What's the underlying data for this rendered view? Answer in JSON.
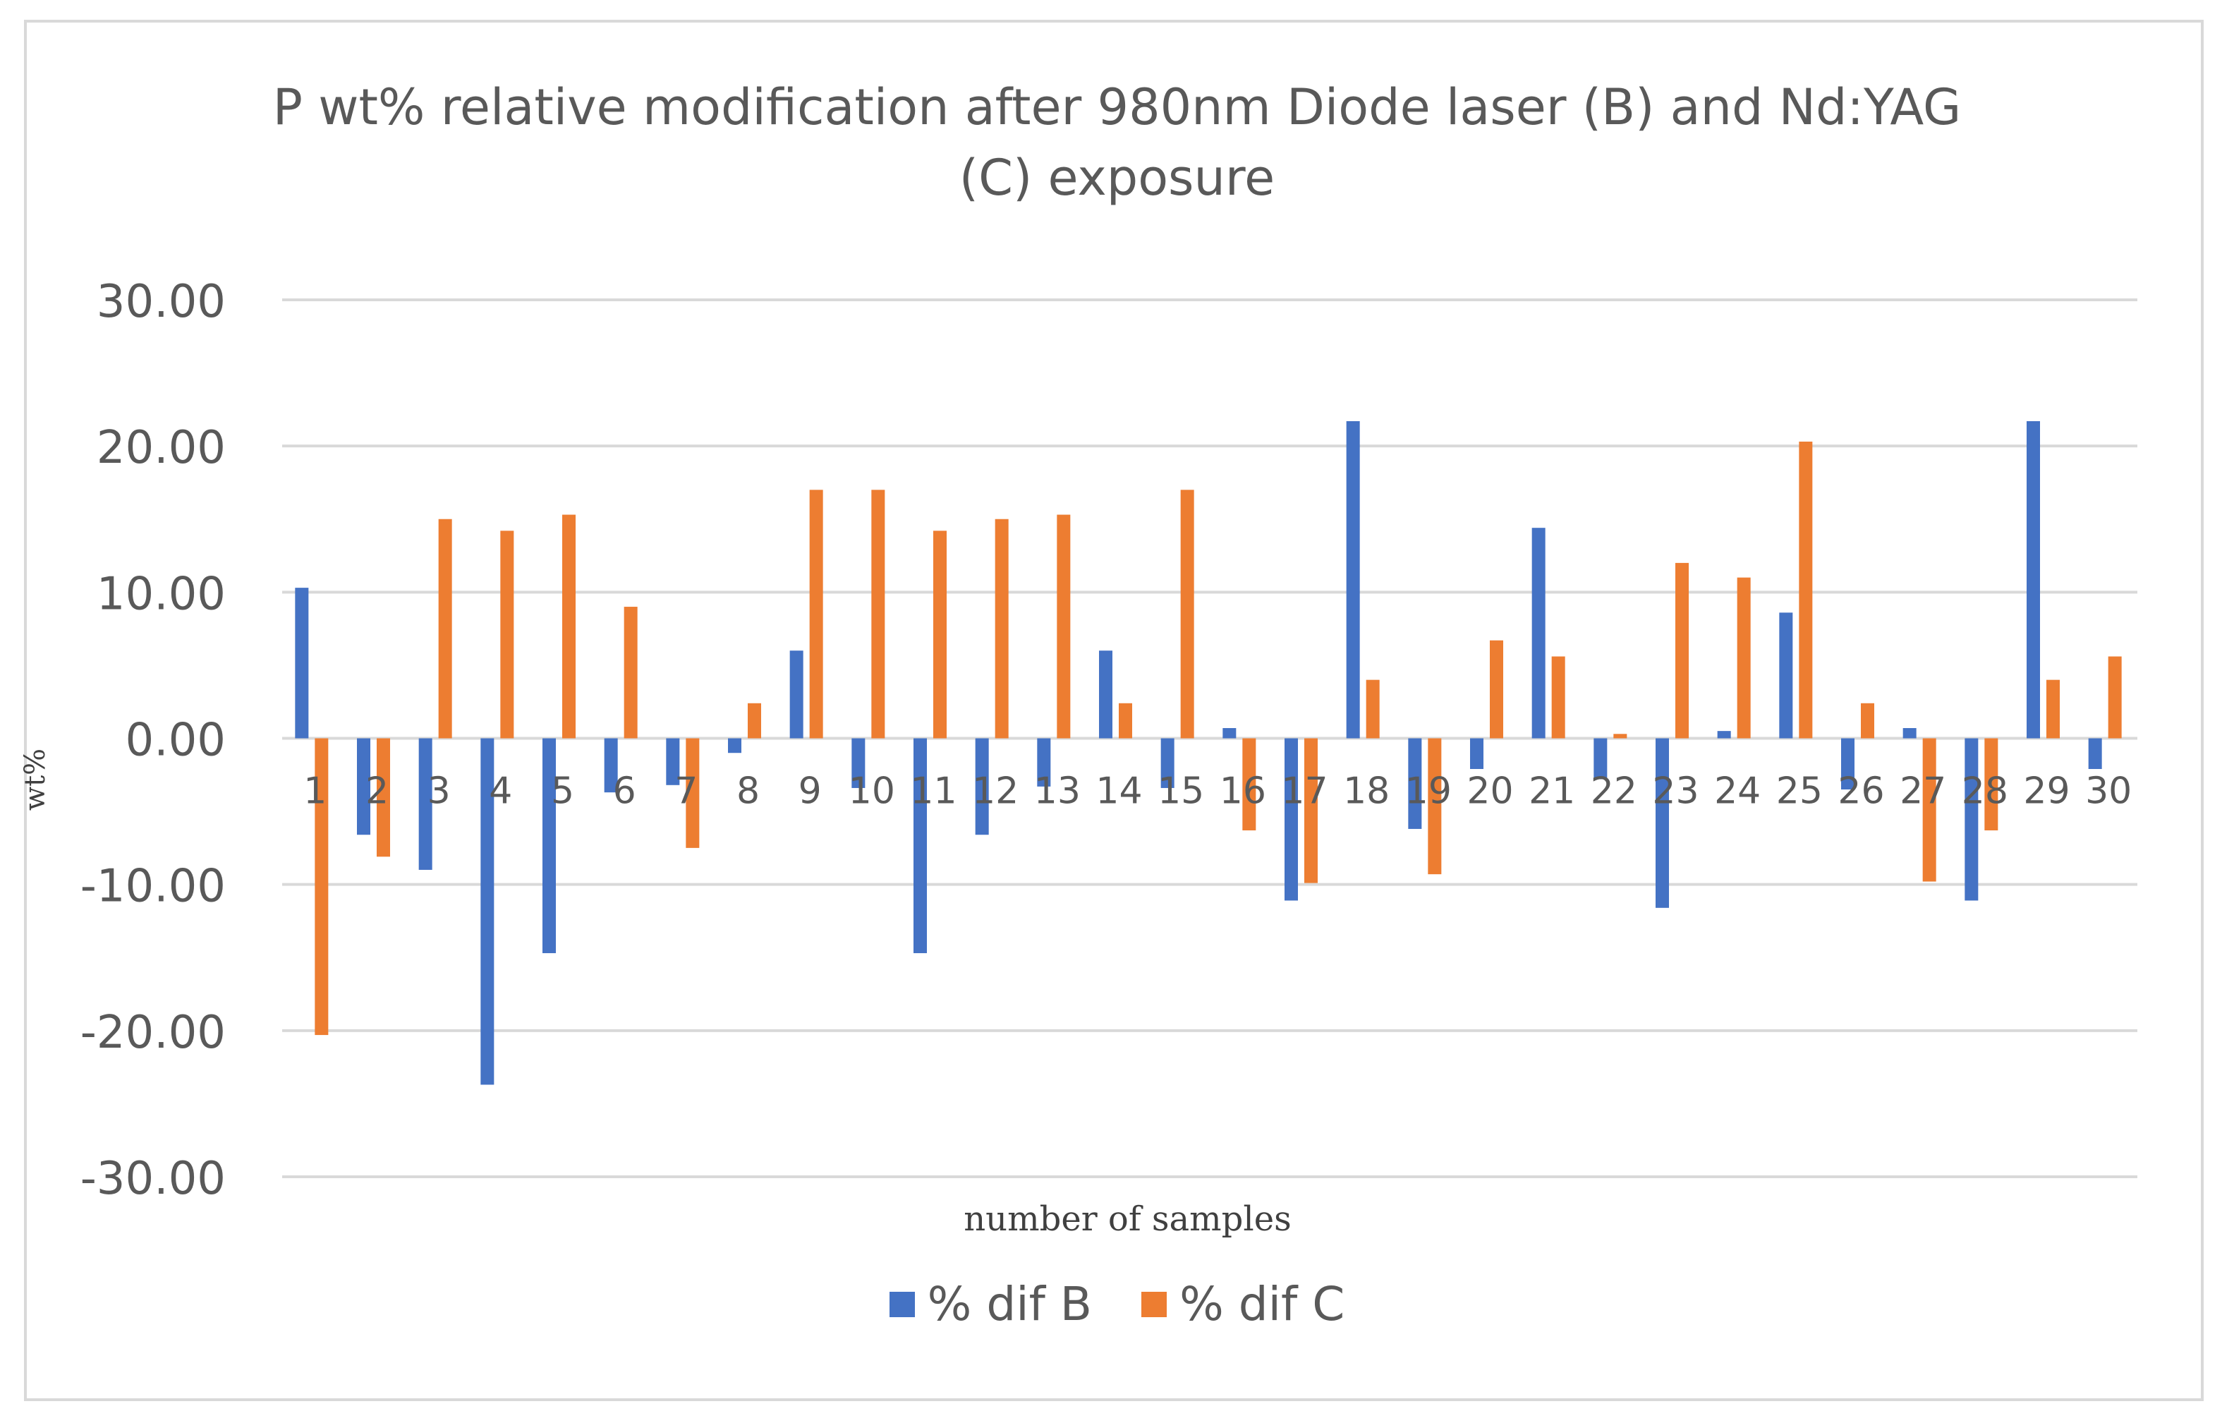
{
  "chart_data": {
    "type": "bar",
    "title_lines": [
      "P wt% relative modification after 980nm Diode laser (B)  and Nd:YAG",
      "(C) exposure"
    ],
    "xlabel": "number of samples",
    "ylabel": "wt%",
    "ylim": [
      -30,
      30
    ],
    "yticks": [
      30,
      20,
      10,
      0,
      -10,
      -20,
      -30
    ],
    "ytick_labels": [
      "30.00",
      "20.00",
      "10.00",
      "0.00",
      "-10.00",
      "-20.00",
      "-30.00"
    ],
    "grid": true,
    "legend_position": "bottom",
    "categories": [
      "1",
      "2",
      "3",
      "4",
      "5",
      "6",
      "7",
      "8",
      "9",
      "10",
      "11",
      "12",
      "13",
      "14",
      "15",
      "16",
      "17",
      "18",
      "19",
      "20",
      "21",
      "22",
      "23",
      "24",
      "25",
      "26",
      "27",
      "28",
      "29",
      "30"
    ],
    "series": [
      {
        "name": "% dif B",
        "color": "#4472c4",
        "values": [
          10.3,
          -6.6,
          -9.0,
          -23.7,
          -14.7,
          -3.7,
          -3.2,
          -1.0,
          6.0,
          -3.4,
          -14.7,
          -6.6,
          -3.3,
          6.0,
          -3.4,
          0.7,
          -11.1,
          21.7,
          -6.2,
          -2.1,
          14.4,
          -2.8,
          -11.6,
          0.5,
          8.6,
          -3.5,
          0.7,
          -11.1,
          21.7,
          -2.1
        ]
      },
      {
        "name": "% dif C",
        "color": "#ed7d31",
        "values": [
          -20.3,
          -8.1,
          15.0,
          14.2,
          15.3,
          9.0,
          -7.5,
          2.4,
          17.0,
          17.0,
          14.2,
          15.0,
          15.3,
          2.4,
          17.0,
          -6.3,
          -9.9,
          4.0,
          -9.3,
          6.7,
          5.6,
          0.3,
          12.0,
          11.0,
          20.3,
          2.4,
          -9.8,
          -6.3,
          4.0,
          5.6
        ]
      }
    ]
  },
  "legend": {
    "items": [
      {
        "label": "% dif B",
        "color": "#4472c4"
      },
      {
        "label": "% dif C",
        "color": "#ed7d31"
      }
    ]
  }
}
